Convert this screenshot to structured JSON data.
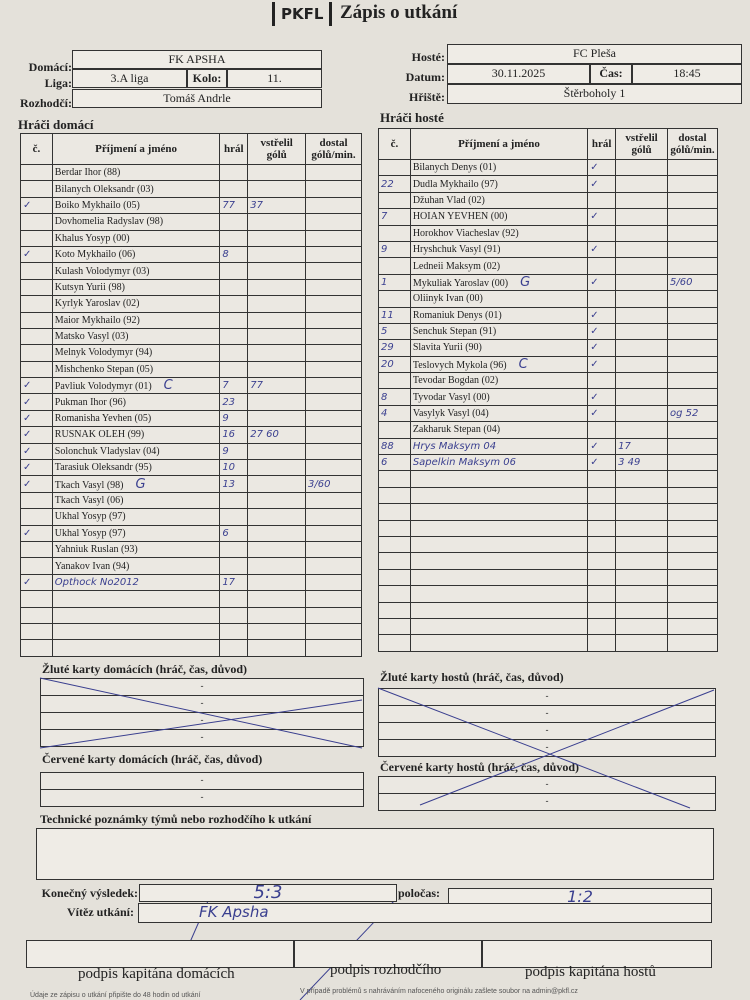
{
  "header": {
    "logo": "PKFL",
    "title": "Zápis o utkání"
  },
  "match": {
    "home_label": "Domácí:",
    "home": "FK APSHA",
    "league_label": "Liga:",
    "league": "3.A liga",
    "round_label": "Kolo:",
    "round": "11.",
    "referee_label": "Rozhodčí:",
    "referee": "Tomáš Andrle",
    "away_label": "Hosté:",
    "away": "FC Pleša",
    "date_label": "Datum:",
    "date": "30.11.2025",
    "time_label": "Čas:",
    "time": "18:45",
    "pitch_label": "Hřiště:",
    "pitch": "Štěrboholy 1"
  },
  "columns": {
    "no": "č.",
    "name": "Příjmení a jméno",
    "played": "hrál",
    "scored": "vstřelil gólů",
    "conceded": "dostal gólů/min."
  },
  "home_players": {
    "title": "Hráči domácí",
    "rows": [
      {
        "no": "",
        "name": "Berdar Ihor (88)",
        "played": "",
        "scored": "",
        "conceded": ""
      },
      {
        "no": "",
        "name": "Bilanych Oleksandr (03)",
        "played": "",
        "scored": "",
        "conceded": ""
      },
      {
        "no": "✓",
        "name": "Boiko Mykhailo (05)",
        "played": "77",
        "scored": "37",
        "conceded": ""
      },
      {
        "no": "",
        "name": "Dovhomelia Radyslav (98)",
        "played": "",
        "scored": "",
        "conceded": ""
      },
      {
        "no": "",
        "name": "Khalus Yosyp (00)",
        "played": "",
        "scored": "",
        "conceded": ""
      },
      {
        "no": "✓",
        "name": "Koto Mykhailo (06)",
        "played": "8",
        "scored": "",
        "conceded": ""
      },
      {
        "no": "",
        "name": "Kulash Volodymyr (03)",
        "played": "",
        "scored": "",
        "conceded": ""
      },
      {
        "no": "",
        "name": "Kutsyn Yurii (98)",
        "played": "",
        "scored": "",
        "conceded": ""
      },
      {
        "no": "",
        "name": "Kyrlyk Yaroslav (02)",
        "played": "",
        "scored": "",
        "conceded": ""
      },
      {
        "no": "",
        "name": "Maior Mykhailo (92)",
        "played": "",
        "scored": "",
        "conceded": ""
      },
      {
        "no": "",
        "name": "Matsko Vasyl (03)",
        "played": "",
        "scored": "",
        "conceded": ""
      },
      {
        "no": "",
        "name": "Melnyk Volodymyr (94)",
        "played": "",
        "scored": "",
        "conceded": ""
      },
      {
        "no": "",
        "name": "Mishchenko Stepan (05)",
        "played": "",
        "scored": "",
        "conceded": ""
      },
      {
        "no": "✓",
        "name": "Pavliuk Volodymyr (01)",
        "mark": "C",
        "played": "7",
        "scored": "77",
        "conceded": ""
      },
      {
        "no": "✓",
        "name": "Pukman Ihor (96)",
        "played": "23",
        "scored": "",
        "conceded": ""
      },
      {
        "no": "✓",
        "name": "Romanisha Yevhen (05)",
        "played": "9",
        "scored": "",
        "conceded": ""
      },
      {
        "no": "✓",
        "name": "RUSNAK OLEH (99)",
        "played": "16",
        "scored": "27 60",
        "conceded": ""
      },
      {
        "no": "✓",
        "name": "Solonchuk Vladyslav (04)",
        "played": "9",
        "scored": "",
        "conceded": ""
      },
      {
        "no": "✓",
        "name": "Tarasiuk Oleksandr (95)",
        "played": "10",
        "scored": "",
        "conceded": ""
      },
      {
        "no": "✓",
        "name": "Tkach Vasyl (98)",
        "mark": "G",
        "played": "13",
        "scored": "",
        "conceded": "3/60"
      },
      {
        "no": "",
        "name": "Tkach Vasyl (06)",
        "played": "",
        "scored": "",
        "conceded": ""
      },
      {
        "no": "",
        "name": "Ukhal Yosyp (97)",
        "played": "",
        "scored": "",
        "conceded": ""
      },
      {
        "no": "✓",
        "name": "Ukhal Yosyp (97)",
        "played": "6",
        "scored": "",
        "conceded": ""
      },
      {
        "no": "",
        "name": "Yahniuk Ruslan (93)",
        "played": "",
        "scored": "",
        "conceded": ""
      },
      {
        "no": "",
        "name": "Yanakov Ivan (94)",
        "played": "",
        "scored": "",
        "conceded": ""
      },
      {
        "no": "✓",
        "name": "Opthock No2012",
        "handwritten": true,
        "played": "17",
        "scored": "",
        "conceded": ""
      }
    ],
    "empty_rows": 4
  },
  "away_players": {
    "title": "Hráči hosté",
    "rows": [
      {
        "no": "",
        "name": "Bilanych Denys (01)",
        "played": "✓",
        "scored": "",
        "conceded": ""
      },
      {
        "no": "22",
        "name": "Dudla Mykhailo (97)",
        "played": "✓",
        "scored": "",
        "conceded": ""
      },
      {
        "no": "",
        "name": "Džuhan Vlad (02)",
        "played": "",
        "scored": "",
        "conceded": ""
      },
      {
        "no": "7",
        "name": "HOIAN YEVHEN (00)",
        "played": "✓",
        "scored": "",
        "conceded": ""
      },
      {
        "no": "",
        "name": "Horokhov Viacheslav (92)",
        "played": "",
        "scored": "",
        "conceded": ""
      },
      {
        "no": "9",
        "name": "Hryshchuk Vasyl (91)",
        "played": "✓",
        "scored": "",
        "conceded": ""
      },
      {
        "no": "",
        "name": "Ledneii Maksym (02)",
        "played": "",
        "scored": "",
        "conceded": ""
      },
      {
        "no": "1",
        "name": "Mykuliak Yaroslav (00)",
        "mark": "G",
        "played": "✓",
        "scored": "",
        "conceded": "5/60"
      },
      {
        "no": "",
        "name": "Oliinyk Ivan (00)",
        "played": "",
        "scored": "",
        "conceded": ""
      },
      {
        "no": "11",
        "name": "Romaniuk Denys (01)",
        "played": "✓",
        "scored": "",
        "conceded": ""
      },
      {
        "no": "5",
        "name": "Senchuk Stepan (91)",
        "played": "✓",
        "scored": "",
        "conceded": ""
      },
      {
        "no": "29",
        "name": "Slavita Yurii (90)",
        "played": "✓",
        "scored": "",
        "conceded": ""
      },
      {
        "no": "20",
        "name": "Teslovych Mykola (96)",
        "mark": "C",
        "played": "✓",
        "scored": "",
        "conceded": ""
      },
      {
        "no": "",
        "name": "Tevodar Bogdan (02)",
        "played": "",
        "scored": "",
        "conceded": ""
      },
      {
        "no": "8",
        "name": "Tyvodar Vasyl (00)",
        "played": "✓",
        "scored": "",
        "conceded": ""
      },
      {
        "no": "4",
        "name": "Vasylyk Vasyl (04)",
        "played": "✓",
        "scored": "",
        "conceded": "og 52"
      },
      {
        "no": "",
        "name": "Zakharuk Stepan (04)",
        "played": "",
        "scored": "",
        "conceded": ""
      },
      {
        "no": "88",
        "name": "Hrys Maksym 04",
        "handwritten": true,
        "played": "✓",
        "scored": "17",
        "conceded": ""
      },
      {
        "no": "6",
        "name": "Sapelkin Maksym 06",
        "handwritten": true,
        "played": "✓",
        "scored": "3 49",
        "conceded": ""
      }
    ],
    "empty_rows": 11
  },
  "cards": {
    "home_yellow": "Žluté karty domácích (hráč, čas, důvod)",
    "away_yellow": "Žluté karty hostů (hráč, čas, důvod)",
    "home_red": "Červené karty domácích (hráč, čas, důvod)",
    "away_red": "Červené karty hostů (hráč, čas, důvod)",
    "placeholder": "-"
  },
  "notes_label": "Technické poznámky týmů nebo rozhodčího k utkání",
  "result": {
    "final_label": "Konečný výsledek:",
    "final": "5:3",
    "half_label": "poločas:",
    "half": "1:2",
    "winner_label": "Vítěz utkání:",
    "winner": "FK Apsha"
  },
  "signatures": {
    "home_captain": "podpis kapitána domácích",
    "referee": "podpis rozhodčího",
    "away_captain": "podpis kapitána hostů"
  },
  "footer": {
    "left": "Údaje ze zápisu o utkání připište do 48 hodin od utkání",
    "right": "V případě problémů s nahráváním nafoceného originálu zašlete soubor na admin@pkfl.cz"
  },
  "colors": {
    "paper": "#e4e1da",
    "ink": "#3a3f8f",
    "print": "#222222"
  }
}
